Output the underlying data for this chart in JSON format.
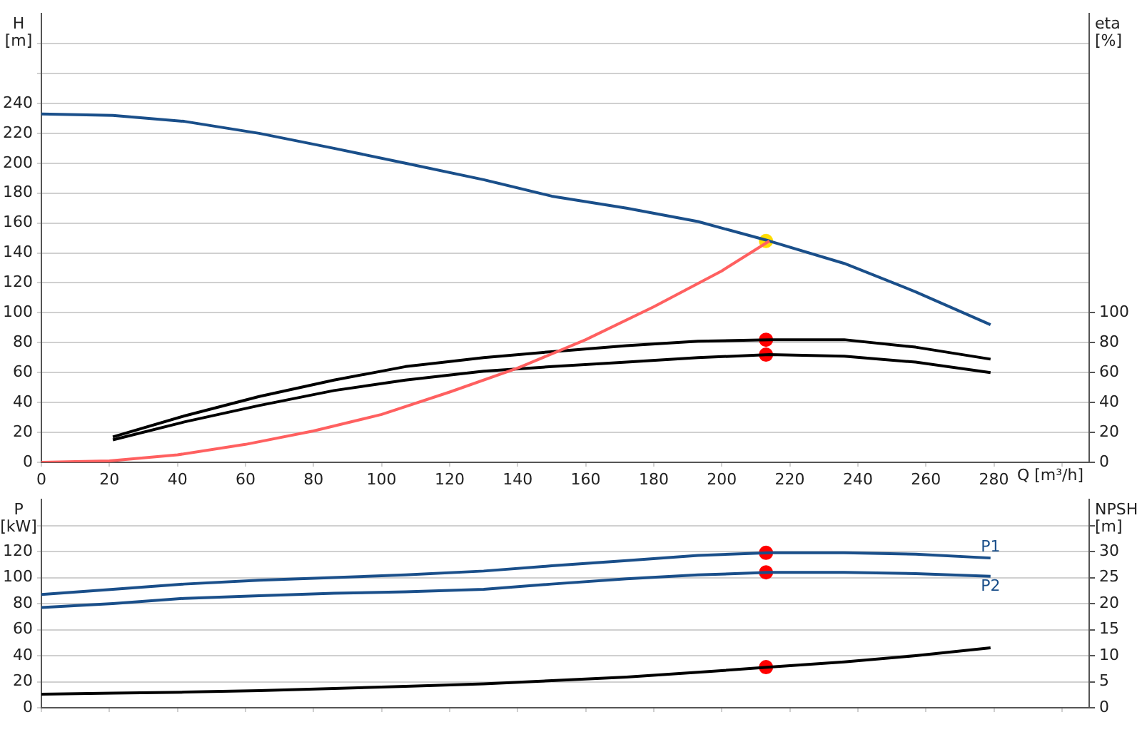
{
  "chart_data": [
    {
      "type": "line",
      "xlabel": "Q [m³/h]",
      "ylabel": "H [m]",
      "y2label": "eta [%]",
      "xlim": [
        0,
        308
      ],
      "xticks": [
        0,
        20,
        40,
        60,
        80,
        100,
        120,
        140,
        160,
        180,
        200,
        220,
        240,
        260,
        280,
        {
          "value": 300,
          "label": null
        }
      ],
      "ylim": [
        0,
        300
      ],
      "yticks": [
        0,
        20,
        40,
        60,
        80,
        100,
        120,
        140,
        160,
        180,
        200,
        220,
        240,
        {
          "value": 260,
          "label": null
        },
        {
          "value": 280,
          "label": null
        }
      ],
      "y2lim": [
        0,
        300
      ],
      "y2ticks": [
        0,
        20,
        40,
        60,
        80,
        100
      ],
      "grid": "y",
      "legend": false,
      "marker": "none",
      "series": [
        {
          "color": "#ff6060",
          "x": [
            0,
            20,
            40,
            60,
            80,
            100,
            120,
            140,
            160,
            180,
            200,
            214
          ],
          "values": [
            0,
            1,
            5,
            12,
            21,
            32,
            47,
            63,
            82,
            104,
            128,
            148
          ]
        },
        {
          "color": "#1a4f8a",
          "x": [
            0,
            21,
            42,
            64,
            86,
            107,
            130,
            150,
            172,
            193,
            214,
            236,
            257,
            279
          ],
          "values": [
            233,
            232,
            228,
            220,
            210,
            200,
            189,
            178,
            170,
            161,
            148,
            133,
            114,
            92
          ]
        },
        {
          "color": "#000000",
          "axis": "y2",
          "x": [
            21,
            42,
            64,
            86,
            107,
            130,
            150,
            172,
            193,
            214,
            236,
            257,
            279
          ],
          "values": [
            17,
            31,
            44,
            55,
            64,
            70,
            74,
            78,
            81,
            82,
            82,
            77,
            69
          ]
        },
        {
          "color": "#000000",
          "axis": "y2",
          "x": [
            21,
            42,
            64,
            86,
            107,
            130,
            150,
            172,
            193,
            214,
            236,
            257,
            279
          ],
          "values": [
            15,
            27,
            38,
            48,
            55,
            61,
            64,
            67,
            70,
            72,
            71,
            67,
            60
          ]
        },
        {
          "type": "scatter",
          "marker": "circle",
          "color": "#ff0000",
          "axis": "y2",
          "x": [
            213,
            213
          ],
          "values": [
            82,
            72
          ]
        },
        {
          "type": "scatter",
          "marker": "circle",
          "color": "#ffdd00",
          "x": [
            213
          ],
          "values": [
            148
          ]
        }
      ]
    },
    {
      "type": "line",
      "ylabel": "P [kW]",
      "y2label": "NPSH [m]",
      "xlim": [
        0,
        308
      ],
      "xticks": [
        0,
        20,
        40,
        60,
        80,
        100,
        120,
        140,
        160,
        180,
        200,
        220,
        240,
        260,
        280,
        300
      ],
      "ylim": [
        0,
        160
      ],
      "yticks": [
        0,
        20,
        40,
        60,
        80,
        100,
        120,
        {
          "value": 140,
          "label": null
        }
      ],
      "y2lim": [
        0,
        40
      ],
      "y2ticks": [
        0,
        5,
        10,
        15,
        20,
        25,
        30,
        {
          "value": 35,
          "label": null
        }
      ],
      "grid": "y",
      "legend": false,
      "marker": "none",
      "tick_labels": "y",
      "series": [
        {
          "name": "P1",
          "color": "#1a4f8a",
          "x": [
            0,
            21,
            42,
            64,
            86,
            107,
            130,
            150,
            172,
            193,
            214,
            236,
            257,
            279
          ],
          "values": [
            87,
            91,
            95,
            98,
            100,
            102,
            105,
            109,
            113,
            117,
            119,
            119,
            118,
            115
          ]
        },
        {
          "name": "P2",
          "color": "#1a4f8a",
          "x": [
            0,
            21,
            42,
            64,
            86,
            107,
            130,
            150,
            172,
            193,
            214,
            236,
            257,
            279
          ],
          "values": [
            77,
            80,
            84,
            86,
            88,
            89,
            91,
            95,
            99,
            102,
            104,
            104,
            103,
            101
          ]
        },
        {
          "color": "#000000",
          "axis": "y2",
          "x": [
            0,
            21,
            42,
            64,
            86,
            107,
            130,
            150,
            172,
            193,
            214,
            236,
            257,
            279
          ],
          "values": [
            2.6,
            2.8,
            3,
            3.3,
            3.7,
            4.1,
            4.6,
            5.2,
            5.9,
            6.8,
            7.8,
            8.8,
            10,
            11.5
          ]
        },
        {
          "type": "scatter",
          "marker": "circle",
          "color": "#ff0000",
          "x": [
            213,
            213
          ],
          "values": [
            119,
            104
          ]
        },
        {
          "type": "scatter",
          "marker": "circle",
          "color": "#ff0000",
          "axis": "y2",
          "x": [
            213
          ],
          "values": [
            7.8
          ]
        }
      ]
    }
  ]
}
